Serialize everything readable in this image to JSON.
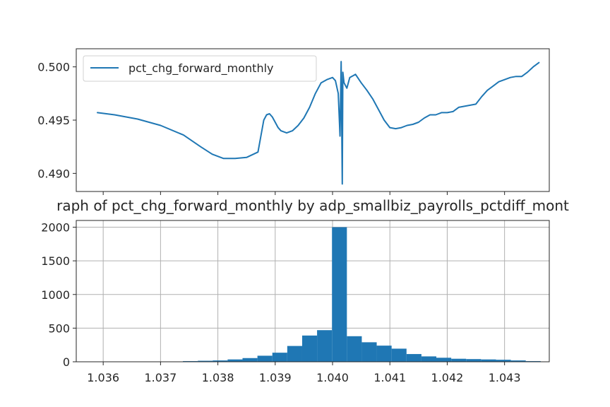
{
  "chart_data": [
    {
      "type": "line",
      "title": "",
      "xlabel": "",
      "ylabel": "",
      "legend": {
        "placement": "upper-left",
        "entries": [
          "pct_chg_forward_monthly"
        ]
      },
      "color": "#1f77b4",
      "grid": false,
      "ylim": [
        0.4883,
        0.5017
      ],
      "xlim": [
        1.03553,
        1.04378
      ],
      "x_tick_labels_shown": false,
      "yticks": [
        {
          "value": 0.49,
          "label": "0.490"
        },
        {
          "value": 0.495,
          "label": "0.495"
        },
        {
          "value": 0.5,
          "label": "0.500"
        }
      ],
      "xticks": [
        1.036,
        1.037,
        1.038,
        1.039,
        1.04,
        1.041,
        1.042,
        1.043
      ],
      "series": [
        {
          "name": "pct_chg_forward_monthly",
          "x": [
            1.0359,
            1.0362,
            1.0366,
            1.037,
            1.0374,
            1.0377,
            1.0379,
            1.0381,
            1.0383,
            1.0385,
            1.0387,
            1.0388,
            1.03885,
            1.0389,
            1.03895,
            1.039,
            1.03905,
            1.0391,
            1.0392,
            1.0393,
            1.0394,
            1.0395,
            1.0396,
            1.0397,
            1.0398,
            1.0399,
            1.04,
            1.04005,
            1.0401,
            1.04013,
            1.04015,
            1.04017,
            1.04018,
            1.0402,
            1.04025,
            1.0403,
            1.0404,
            1.0405,
            1.0406,
            1.0407,
            1.0408,
            1.0409,
            1.041,
            1.0411,
            1.0412,
            1.0413,
            1.0414,
            1.0415,
            1.0416,
            1.0417,
            1.0418,
            1.0419,
            1.042,
            1.0421,
            1.0422,
            1.0423,
            1.0424,
            1.0425,
            1.0426,
            1.0427,
            1.0428,
            1.0429,
            1.043,
            1.0431,
            1.0432,
            1.0433,
            1.0434,
            1.0435,
            1.0436
          ],
          "y": [
            0.4957,
            0.4955,
            0.4951,
            0.4945,
            0.4936,
            0.4925,
            0.4918,
            0.4914,
            0.4914,
            0.4915,
            0.492,
            0.495,
            0.4955,
            0.4956,
            0.4953,
            0.4948,
            0.4943,
            0.494,
            0.4938,
            0.494,
            0.4945,
            0.4952,
            0.4962,
            0.4975,
            0.4985,
            0.4988,
            0.499,
            0.4987,
            0.4975,
            0.4935,
            0.5005,
            0.489,
            0.4995,
            0.4985,
            0.498,
            0.499,
            0.4993,
            0.4985,
            0.4978,
            0.497,
            0.496,
            0.495,
            0.4943,
            0.4942,
            0.4943,
            0.4945,
            0.4946,
            0.4948,
            0.4952,
            0.4955,
            0.4955,
            0.4957,
            0.4957,
            0.4958,
            0.4962,
            0.4963,
            0.4964,
            0.4965,
            0.4972,
            0.4978,
            0.4982,
            0.4986,
            0.4988,
            0.499,
            0.4991,
            0.4991,
            0.4995,
            0.5,
            0.5004
          ]
        }
      ]
    },
    {
      "type": "bar",
      "title": "raph of pct_chg_forward_monthly by adp_smallbiz_payrolls_pctdiff_mont",
      "xlabel": "",
      "ylabel": "",
      "color": "#1f77b4",
      "grid": true,
      "xlim": [
        1.03553,
        1.04378
      ],
      "ylim": [
        0,
        2100
      ],
      "xticks": [
        {
          "value": 1.036,
          "label": "1.036"
        },
        {
          "value": 1.037,
          "label": "1.037"
        },
        {
          "value": 1.038,
          "label": "1.038"
        },
        {
          "value": 1.039,
          "label": "1.039"
        },
        {
          "value": 1.04,
          "label": "1.040"
        },
        {
          "value": 1.041,
          "label": "1.041"
        },
        {
          "value": 1.042,
          "label": "1.042"
        },
        {
          "value": 1.043,
          "label": "1.043"
        }
      ],
      "yticks": [
        {
          "value": 0,
          "label": "0"
        },
        {
          "value": 500,
          "label": "500"
        },
        {
          "value": 1000,
          "label": "1000"
        },
        {
          "value": 1500,
          "label": "1500"
        },
        {
          "value": 2000,
          "label": "2000"
        }
      ],
      "bin_edges": [
        1.03583,
        1.03609,
        1.03635,
        1.03661,
        1.03687,
        1.03713,
        1.03739,
        1.03765,
        1.03791,
        1.03817,
        1.03843,
        1.03869,
        1.03895,
        1.03921,
        1.03947,
        1.03973,
        1.03999,
        1.04025,
        1.04051,
        1.04077,
        1.04103,
        1.04129,
        1.04155,
        1.04181,
        1.04207,
        1.04233,
        1.04259,
        1.04285,
        1.04311,
        1.04337,
        1.04363
      ],
      "values": [
        2,
        2,
        3,
        3,
        4,
        5,
        10,
        15,
        20,
        35,
        55,
        90,
        135,
        235,
        390,
        470,
        2000,
        380,
        290,
        240,
        195,
        115,
        80,
        60,
        45,
        40,
        35,
        30,
        20,
        10
      ]
    }
  ]
}
